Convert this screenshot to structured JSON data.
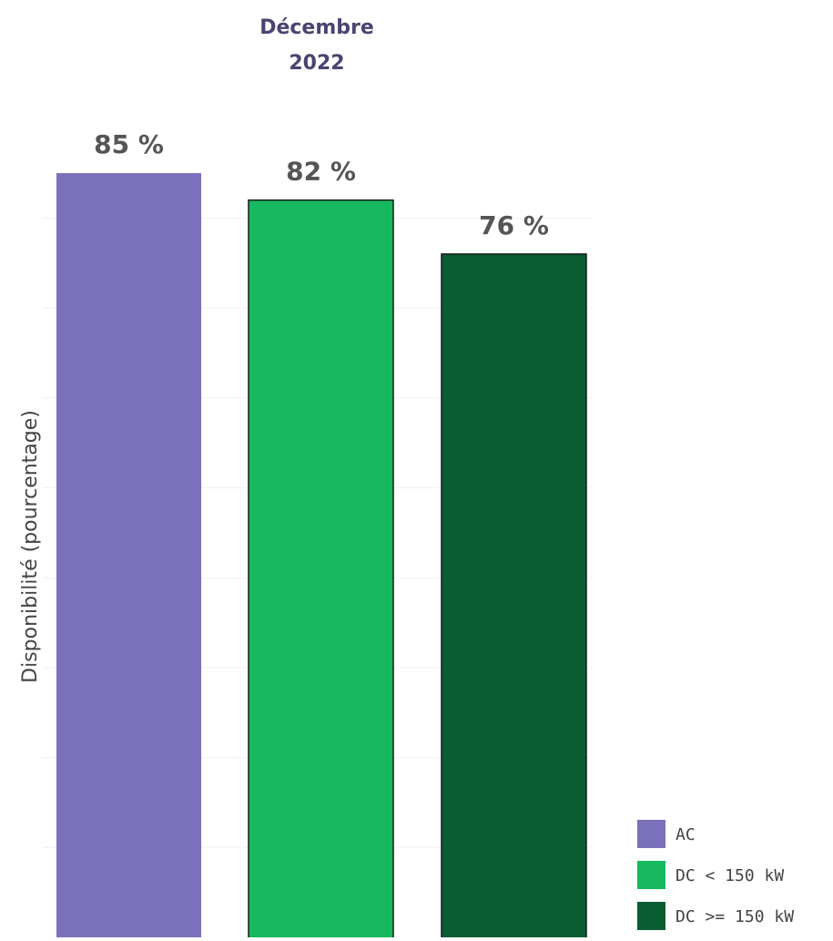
{
  "chart_data": {
    "type": "bar",
    "title": "Décembre 2022",
    "title_lines": [
      "Décembre",
      "2022"
    ],
    "ylabel": "Disponibilité (pourcentage)",
    "categories": [
      "AC",
      "DC < 150 kW",
      "DC >= 150 kW"
    ],
    "values": [
      85,
      82,
      76
    ],
    "value_labels": [
      "85 %",
      "82 %",
      "76 %"
    ],
    "colors": [
      "#7b70ba",
      "#16b960",
      "#0a5c32"
    ],
    "ylim": [
      0,
      85
    ],
    "grid": true,
    "legend": {
      "placement": "bottom-right",
      "entries": [
        "AC",
        "DC < 150 kW",
        "DC >= 150 kW"
      ]
    }
  }
}
